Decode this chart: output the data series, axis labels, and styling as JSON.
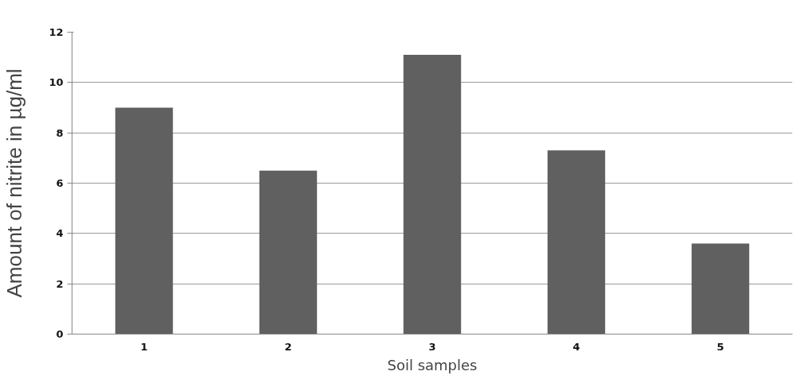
{
  "chart_data": {
    "type": "bar",
    "xlabel": "Soil samples",
    "ylabel": "Amount of nitrite in µg/ml",
    "categories": [
      "1",
      "2",
      "3",
      "4",
      "5"
    ],
    "values": [
      9.0,
      6.5,
      11.1,
      7.3,
      3.6
    ],
    "color": "#606060",
    "ylim": [
      0,
      12
    ],
    "yticks": [
      0,
      2,
      4,
      6,
      8,
      10,
      12
    ],
    "grid": "y"
  }
}
